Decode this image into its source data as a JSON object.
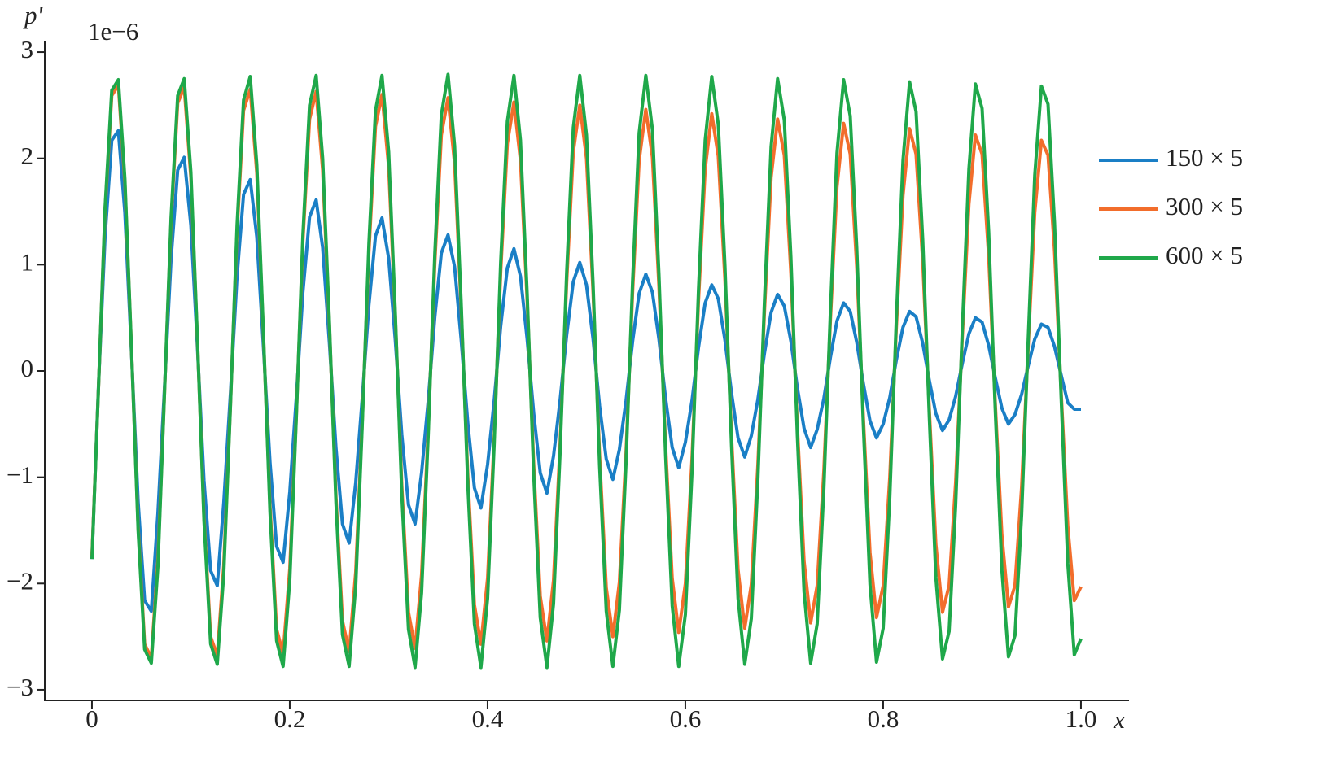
{
  "chart_data": {
    "type": "line",
    "y_label": "p'",
    "x_label": "x",
    "y_offset_label": "1e−6",
    "x": [
      0,
      0.0067,
      0.0133,
      0.02,
      0.0267,
      0.0333,
      0.04,
      0.0467,
      0.0533,
      0.06,
      0.0667,
      0.0733,
      0.08,
      0.0867,
      0.0933,
      0.1,
      0.1067,
      0.1133,
      0.12,
      0.1267,
      0.1333,
      0.14,
      0.1467,
      0.1533,
      0.16,
      0.1667,
      0.1733,
      0.18,
      0.1867,
      0.1933,
      0.2,
      0.2067,
      0.2133,
      0.22,
      0.2267,
      0.2333,
      0.24,
      0.2467,
      0.2533,
      0.26,
      0.2667,
      0.2733,
      0.28,
      0.2867,
      0.2933,
      0.3,
      0.3067,
      0.3133,
      0.32,
      0.3267,
      0.3333,
      0.34,
      0.3467,
      0.3533,
      0.36,
      0.3667,
      0.3733,
      0.38,
      0.3867,
      0.3933,
      0.4,
      0.4067,
      0.4133,
      0.42,
      0.4267,
      0.4333,
      0.44,
      0.4467,
      0.4533,
      0.46,
      0.4667,
      0.4733,
      0.48,
      0.4867,
      0.4933,
      0.5,
      0.5067,
      0.5133,
      0.52,
      0.5267,
      0.5333,
      0.54,
      0.5467,
      0.5533,
      0.56,
      0.5667,
      0.5733,
      0.58,
      0.5867,
      0.5933,
      0.6,
      0.6067,
      0.6133,
      0.62,
      0.6267,
      0.6333,
      0.64,
      0.6467,
      0.6533,
      0.66,
      0.6667,
      0.6733,
      0.68,
      0.6867,
      0.6933,
      0.7,
      0.7067,
      0.7133,
      0.72,
      0.7267,
      0.7333,
      0.74,
      0.7467,
      0.7533,
      0.76,
      0.7667,
      0.7733,
      0.78,
      0.7867,
      0.7933,
      0.8,
      0.8067,
      0.8133,
      0.82,
      0.8267,
      0.8333,
      0.84,
      0.8467,
      0.8533,
      0.86,
      0.8667,
      0.8733,
      0.88,
      0.8867,
      0.8933,
      0.9,
      0.9067,
      0.9133,
      0.92,
      0.9267,
      0.9333,
      0.94,
      0.9467,
      0.9533,
      0.96,
      0.9667,
      0.9733,
      0.98,
      0.9867,
      0.9933,
      1
    ],
    "series": [
      {
        "name": "150 × 5",
        "color": "#1a7fc6",
        "values": [
          -1.77,
          -0.12,
          1.27,
          2.17,
          2.26,
          1.49,
          0.16,
          -1.23,
          -2.16,
          -2.26,
          -1.34,
          -0.17,
          1.06,
          1.89,
          2.01,
          1.37,
          0.21,
          -1.03,
          -1.88,
          -2.02,
          -1.24,
          -0.21,
          0.89,
          1.66,
          1.8,
          1.26,
          0.24,
          -0.86,
          -1.65,
          -1.8,
          -1.14,
          -0.24,
          0.74,
          1.45,
          1.61,
          1.16,
          0.27,
          -0.72,
          -1.44,
          -1.62,
          -1.05,
          -0.26,
          0.62,
          1.27,
          1.44,
          1.06,
          0.29,
          -0.6,
          -1.26,
          -1.44,
          -0.96,
          -0.28,
          0.51,
          1.11,
          1.28,
          0.98,
          0.3,
          -0.49,
          -1.1,
          -1.29,
          -0.88,
          -0.28,
          0.42,
          0.97,
          1.15,
          0.89,
          0.3,
          -0.4,
          -0.96,
          -1.15,
          -0.8,
          -0.28,
          0.34,
          0.84,
          1.02,
          0.81,
          0.3,
          -0.33,
          -0.83,
          -1.02,
          -0.74,
          -0.28,
          0.28,
          0.73,
          0.91,
          0.74,
          0.3,
          -0.26,
          -0.72,
          -0.91,
          -0.67,
          -0.28,
          0.22,
          0.64,
          0.81,
          0.68,
          0.29,
          -0.21,
          -0.63,
          -0.81,
          -0.61,
          -0.27,
          0.17,
          0.55,
          0.72,
          0.61,
          0.28,
          -0.16,
          -0.54,
          -0.72,
          -0.55,
          -0.26,
          0.13,
          0.47,
          0.64,
          0.56,
          0.27,
          -0.12,
          -0.47,
          -0.63,
          -0.5,
          -0.25,
          0.1,
          0.41,
          0.56,
          0.51,
          0.26,
          -0.09,
          -0.4,
          -0.56,
          -0.46,
          -0.24,
          0.07,
          0.35,
          0.5,
          0.46,
          0.24,
          -0.06,
          -0.35,
          -0.5,
          -0.41,
          -0.22,
          0.05,
          0.3,
          0.44,
          0.41,
          0.23,
          -0.04,
          -0.3,
          -0.36,
          -0.36
        ]
      },
      {
        "name": "300 × 5",
        "color": "#f26d2b",
        "values": [
          -1.74,
          -0.14,
          1.51,
          2.59,
          2.69,
          1.77,
          0.19,
          -1.47,
          -2.57,
          -2.7,
          -1.78,
          -0.23,
          1.41,
          2.52,
          2.67,
          1.82,
          0.27,
          -1.37,
          -2.5,
          -2.68,
          -1.83,
          -0.32,
          1.31,
          2.45,
          2.65,
          1.86,
          0.36,
          -1.27,
          -2.43,
          -2.66,
          -1.86,
          -0.4,
          1.22,
          2.37,
          2.63,
          1.89,
          0.44,
          -1.18,
          -2.35,
          -2.64,
          -1.89,
          -0.48,
          1.12,
          2.3,
          2.6,
          1.92,
          0.52,
          -1.08,
          -2.27,
          -2.61,
          -1.92,
          -0.55,
          1.02,
          2.22,
          2.57,
          1.95,
          0.6,
          -0.99,
          -2.2,
          -2.57,
          -1.95,
          -0.63,
          0.93,
          2.14,
          2.53,
          1.98,
          0.67,
          -0.89,
          -2.12,
          -2.54,
          -1.97,
          -0.7,
          0.84,
          2.06,
          2.5,
          2,
          0.74,
          -0.8,
          -2.04,
          -2.5,
          -1.99,
          -0.77,
          0.75,
          1.98,
          2.46,
          2.01,
          0.8,
          -0.71,
          -1.95,
          -2.46,
          -2,
          -0.83,
          0.66,
          1.9,
          2.42,
          2.02,
          0.86,
          -0.62,
          -1.87,
          -2.42,
          -2.01,
          -0.89,
          0.57,
          1.82,
          2.37,
          2.03,
          0.92,
          -0.53,
          -1.79,
          -2.37,
          -2.02,
          -0.94,
          0.49,
          1.73,
          2.33,
          2.04,
          0.98,
          -0.45,
          -1.71,
          -2.32,
          -2.02,
          -1,
          0.4,
          1.65,
          2.28,
          2.04,
          1.03,
          -0.37,
          -1.63,
          -2.27,
          -2.02,
          -1.05,
          0.32,
          1.57,
          2.22,
          2.04,
          1.08,
          -0.29,
          -1.54,
          -2.22,
          -2.02,
          -1.09,
          0.24,
          1.49,
          2.17,
          2.03,
          1.13,
          -0.21,
          -1.46,
          -2.16,
          -2.03
        ]
      },
      {
        "name": "600 × 5",
        "color": "#1fa84a",
        "values": [
          -1.77,
          -0.14,
          1.54,
          2.64,
          2.74,
          1.81,
          0.19,
          -1.5,
          -2.62,
          -2.75,
          -1.84,
          -0.23,
          1.45,
          2.59,
          2.75,
          1.87,
          0.28,
          -1.41,
          -2.57,
          -2.76,
          -1.91,
          -0.33,
          1.37,
          2.55,
          2.77,
          1.94,
          0.38,
          -1.33,
          -2.54,
          -2.78,
          -1.97,
          -0.42,
          1.28,
          2.5,
          2.78,
          2,
          0.47,
          -1.24,
          -2.48,
          -2.78,
          -2.02,
          -0.51,
          1.2,
          2.45,
          2.78,
          2.06,
          0.55,
          -1.16,
          -2.43,
          -2.79,
          -2.09,
          -0.6,
          1.11,
          2.41,
          2.79,
          2.12,
          0.65,
          -1.07,
          -2.38,
          -2.79,
          -2.14,
          -0.69,
          1.02,
          2.35,
          2.78,
          2.17,
          0.73,
          -0.98,
          -2.32,
          -2.79,
          -2.19,
          -0.78,
          0.93,
          2.29,
          2.78,
          2.22,
          0.82,
          -0.89,
          -2.26,
          -2.78,
          -2.25,
          -0.86,
          0.85,
          2.24,
          2.78,
          2.27,
          0.91,
          -0.8,
          -2.21,
          -2.78,
          -2.29,
          -0.95,
          0.76,
          2.17,
          2.77,
          2.32,
          0.99,
          -0.71,
          -2.14,
          -2.76,
          -2.33,
          -1.03,
          0.67,
          2.11,
          2.75,
          2.36,
          1.07,
          -0.62,
          -2.08,
          -2.75,
          -2.38,
          -1.11,
          0.57,
          2.05,
          2.74,
          2.4,
          1.16,
          -0.53,
          -2.01,
          -2.74,
          -2.42,
          -1.19,
          0.48,
          1.98,
          2.72,
          2.44,
          1.23,
          -0.44,
          -1.94,
          -2.71,
          -2.45,
          -1.27,
          0.39,
          1.9,
          2.7,
          2.47,
          1.31,
          -0.35,
          -1.87,
          -2.69,
          -2.49,
          -1.35,
          0.3,
          1.84,
          2.68,
          2.51,
          1.39,
          -0.26,
          -1.81,
          -2.67,
          -2.52
        ]
      }
    ],
    "xlim": [
      -0.0477,
      1.0486
    ],
    "ylim": [
      -3.1,
      3.1
    ],
    "xticks": [
      0,
      0.2,
      0.4,
      0.6,
      0.8,
      {
        "value": 1,
        "label": "1.0"
      }
    ],
    "yticks": [
      {
        "value": -3,
        "label": "−3"
      },
      {
        "value": -2,
        "label": "−2"
      },
      {
        "value": -1,
        "label": "−1"
      },
      0,
      1,
      2,
      3
    ],
    "grid": false,
    "legend": "right"
  }
}
